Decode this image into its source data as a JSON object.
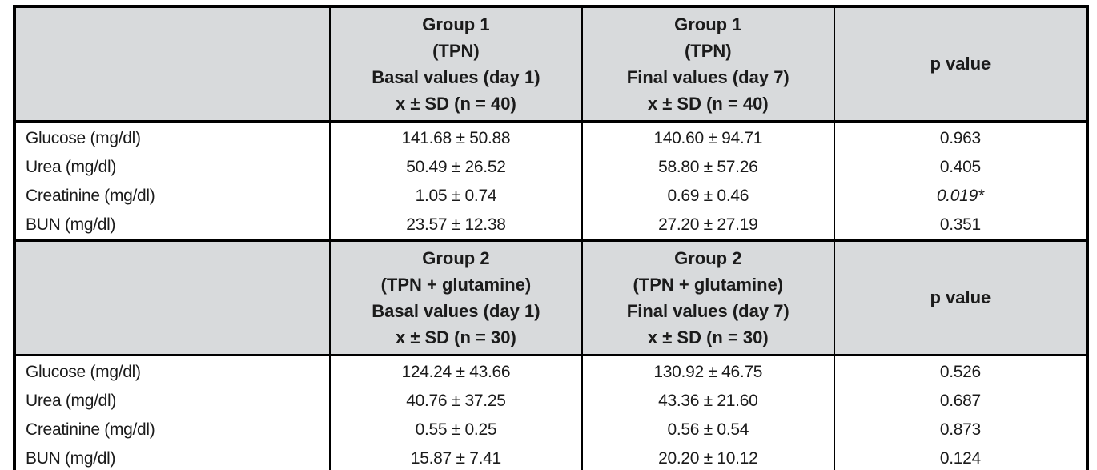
{
  "page": {
    "background": "#ffffff"
  },
  "table": {
    "header_fill": "#d8dadc",
    "border_color": "#000000",
    "text_color": "#1b1b1b",
    "row_header": "",
    "sections": [
      {
        "basal_header_lines": [
          "Group 1",
          "(TPN)",
          "Basal values (day 1)",
          "x ± SD (n = 40)"
        ],
        "final_header_lines": [
          "Group 1",
          "(TPN)",
          "Final values (day 7)",
          "x ± SD (n = 40)"
        ],
        "p_header": "p value",
        "rows": [
          {
            "label": "Glucose (mg/dl)",
            "basal": "141.68 ± 50.88",
            "final": "140.60 ± 94.71",
            "p": "0.963",
            "p_significant": false
          },
          {
            "label": "Urea (mg/dl)",
            "basal": "50.49 ± 26.52",
            "final": "58.80 ± 57.26",
            "p": "0.405",
            "p_significant": false
          },
          {
            "label": "Creatinine (mg/dl)",
            "basal": "1.05 ± 0.74",
            "final": "0.69 ± 0.46",
            "p": "0.019*",
            "p_significant": true
          },
          {
            "label": "BUN (mg/dl)",
            "basal": "23.57 ± 12.38",
            "final": "27.20 ± 27.19",
            "p": "0.351",
            "p_significant": false
          }
        ]
      },
      {
        "basal_header_lines": [
          "Group 2",
          "(TPN + glutamine)",
          "Basal values (day 1)",
          "x ± SD (n = 30)"
        ],
        "final_header_lines": [
          "Group 2",
          "(TPN + glutamine)",
          "Final values (day 7)",
          "x ± SD (n = 30)"
        ],
        "p_header": "p value",
        "rows": [
          {
            "label": "Glucose (mg/dl)",
            "basal": "124.24 ± 43.66",
            "final": "130.92 ± 46.75",
            "p": "0.526",
            "p_significant": false
          },
          {
            "label": "Urea (mg/dl)",
            "basal": "40.76 ± 37.25",
            "final": "43.36 ± 21.60",
            "p": "0.687",
            "p_significant": false
          },
          {
            "label": "Creatinine (mg/dl)",
            "basal": "0.55 ± 0.25",
            "final": "0.56 ± 0.54",
            "p": "0.873",
            "p_significant": false
          },
          {
            "label": "BUN (mg/dl)",
            "basal": "15.87 ± 7.41",
            "final": "20.20 ± 10.12",
            "p": "0.124",
            "p_significant": false
          }
        ]
      }
    ]
  }
}
